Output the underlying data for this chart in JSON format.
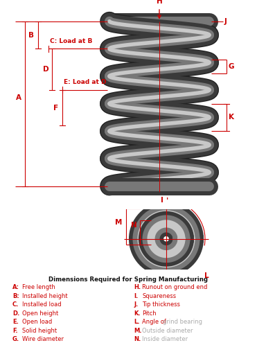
{
  "bg_color": "#ffffff",
  "red": "#cc0000",
  "dark": "#111111",
  "gray_text": "#aaaaaa",
  "title_text": "Dimensions Required for Spring Manufacturing",
  "legend_left": [
    [
      "A:",
      "Free length"
    ],
    [
      "B:",
      "Installed height"
    ],
    [
      "C.",
      "Installed load"
    ],
    [
      "D.",
      "Open height"
    ],
    [
      "E.",
      "Open load"
    ],
    [
      "F.",
      "Solid height"
    ],
    [
      "G.",
      "Wire diameter"
    ]
  ],
  "legend_right_items": [
    [
      "H.",
      "Runout on ground end",
      "red"
    ],
    [
      "I.",
      " Squareness",
      "red"
    ],
    [
      "J.",
      " Tip thickness",
      "red"
    ],
    [
      "K.",
      " Pitch",
      "red"
    ],
    [
      "L.",
      " Angle of ",
      "red",
      "grind bearing",
      "gray"
    ],
    [
      "M.",
      " Outside diameter",
      "gray"
    ],
    [
      "N.",
      " Inside diameter",
      "gray"
    ]
  ],
  "spring_color_dark": "#3a3a3a",
  "spring_color_mid": "#787878",
  "spring_color_light": "#c8c8c8",
  "spring_color_shadow": "#222222"
}
